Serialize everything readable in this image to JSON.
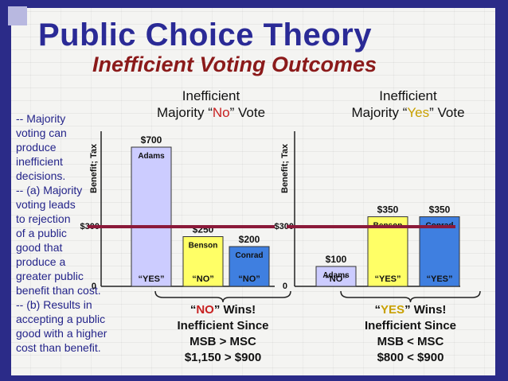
{
  "title": "Public Choice Theory",
  "subtitle": "Inefficient Voting Outcomes",
  "left_text": "-- Majority\nvoting can\nproduce\ninefficient\ndecisions.\n-- (a) Majority\nvoting leads\nto rejection\nof a public\ngood that\nproduce a\ngreater public\nbenefit than cost.\n-- (b) Results in\naccepting a public\ngood with a higher\ncost than benefit.",
  "left_chart": {
    "header_line1": "Inefficient",
    "header_pre": "Majority “",
    "header_kw": "No",
    "header_post": "” Vote",
    "y_label": "Benefit; Tax",
    "zero_label": "0",
    "tax_label": "$300",
    "outcome_pre": "“",
    "outcome_kw": "NO",
    "outcome_post": "” Wins!",
    "outcome_line2": "Inefficient Since",
    "outcome_line3": "MSB > MSC",
    "outcome_line4": "$1,150 > $900"
  },
  "right_chart": {
    "header_line1": "Inefficient",
    "header_pre": "Majority “",
    "header_kw": "Yes",
    "header_post": "” Vote",
    "y_label": "Benefit; Tax",
    "zero_label": "0",
    "tax_label": "$300",
    "outcome_pre": "“",
    "outcome_kw": "YES",
    "outcome_post": "” Wins!",
    "outcome_line2": "Inefficient Since",
    "outcome_line3": "MSB < MSC",
    "outcome_line4": "$800 < $900"
  },
  "chart_data": [
    {
      "type": "bar",
      "categories": [
        "Adams",
        "Benson",
        "Conrad"
      ],
      "values": [
        700,
        250,
        200
      ],
      "value_labels": [
        "$700",
        "$250",
        "$200"
      ],
      "votes": [
        "“YES”",
        "“NO”",
        "“NO”"
      ],
      "colors": [
        "#ccccff",
        "#ffff66",
        "#3f7fe0"
      ],
      "tax_line": 300,
      "ylim": [
        0,
        800
      ]
    },
    {
      "type": "bar",
      "categories": [
        "Adams",
        "Benson",
        "Conrad"
      ],
      "values": [
        100,
        350,
        350
      ],
      "value_labels": [
        "$100",
        "$350",
        "$350"
      ],
      "votes": [
        "“NO”",
        "“YES”",
        "“YES”"
      ],
      "colors": [
        "#ccccff",
        "#ffff66",
        "#3f7fe0"
      ],
      "tax_line": 300,
      "ylim": [
        0,
        800
      ]
    }
  ],
  "colors": {
    "title": "#2a2a96",
    "subtitle": "#8b1a1a",
    "tax_line": "#8b1a3a",
    "frame": "#2b2b88"
  }
}
